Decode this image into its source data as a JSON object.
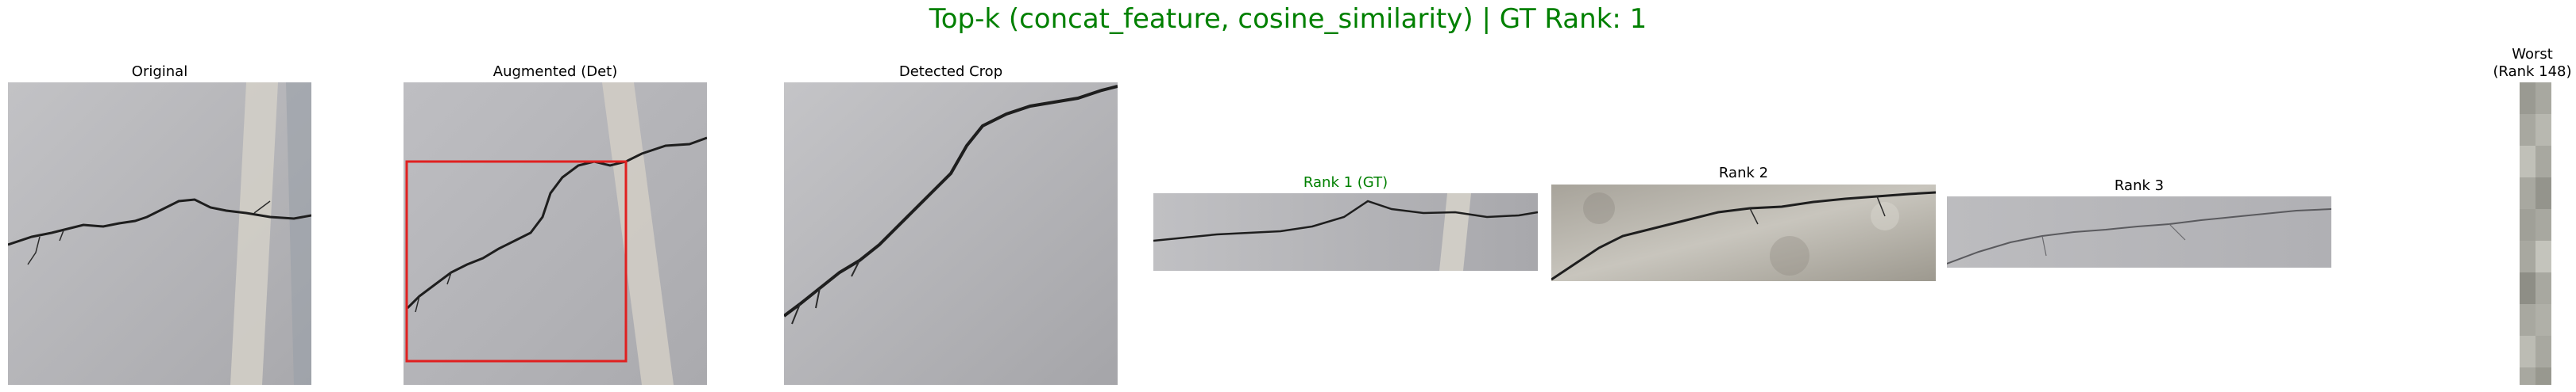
{
  "figure": {
    "title": "Top-k (concat_feature, cosine_similarity) | GT Rank: 1"
  },
  "panels": {
    "original": {
      "label": "Original"
    },
    "augmented": {
      "label": "Augmented (Det)"
    },
    "crop": {
      "label": "Detected Crop"
    },
    "rank1": {
      "label": "Rank 1 (GT)"
    },
    "rank2": {
      "label": "Rank 2"
    },
    "rank3": {
      "label": "Rank 3"
    },
    "worst": {
      "label_line1": "Worst",
      "label_line2": "(Rank 148)"
    }
  },
  "colors": {
    "title": "#008000",
    "gt_label": "#008000",
    "detection_box": "#e02020",
    "concrete": "#b3b3b6",
    "crack": "#1e1e1e"
  }
}
